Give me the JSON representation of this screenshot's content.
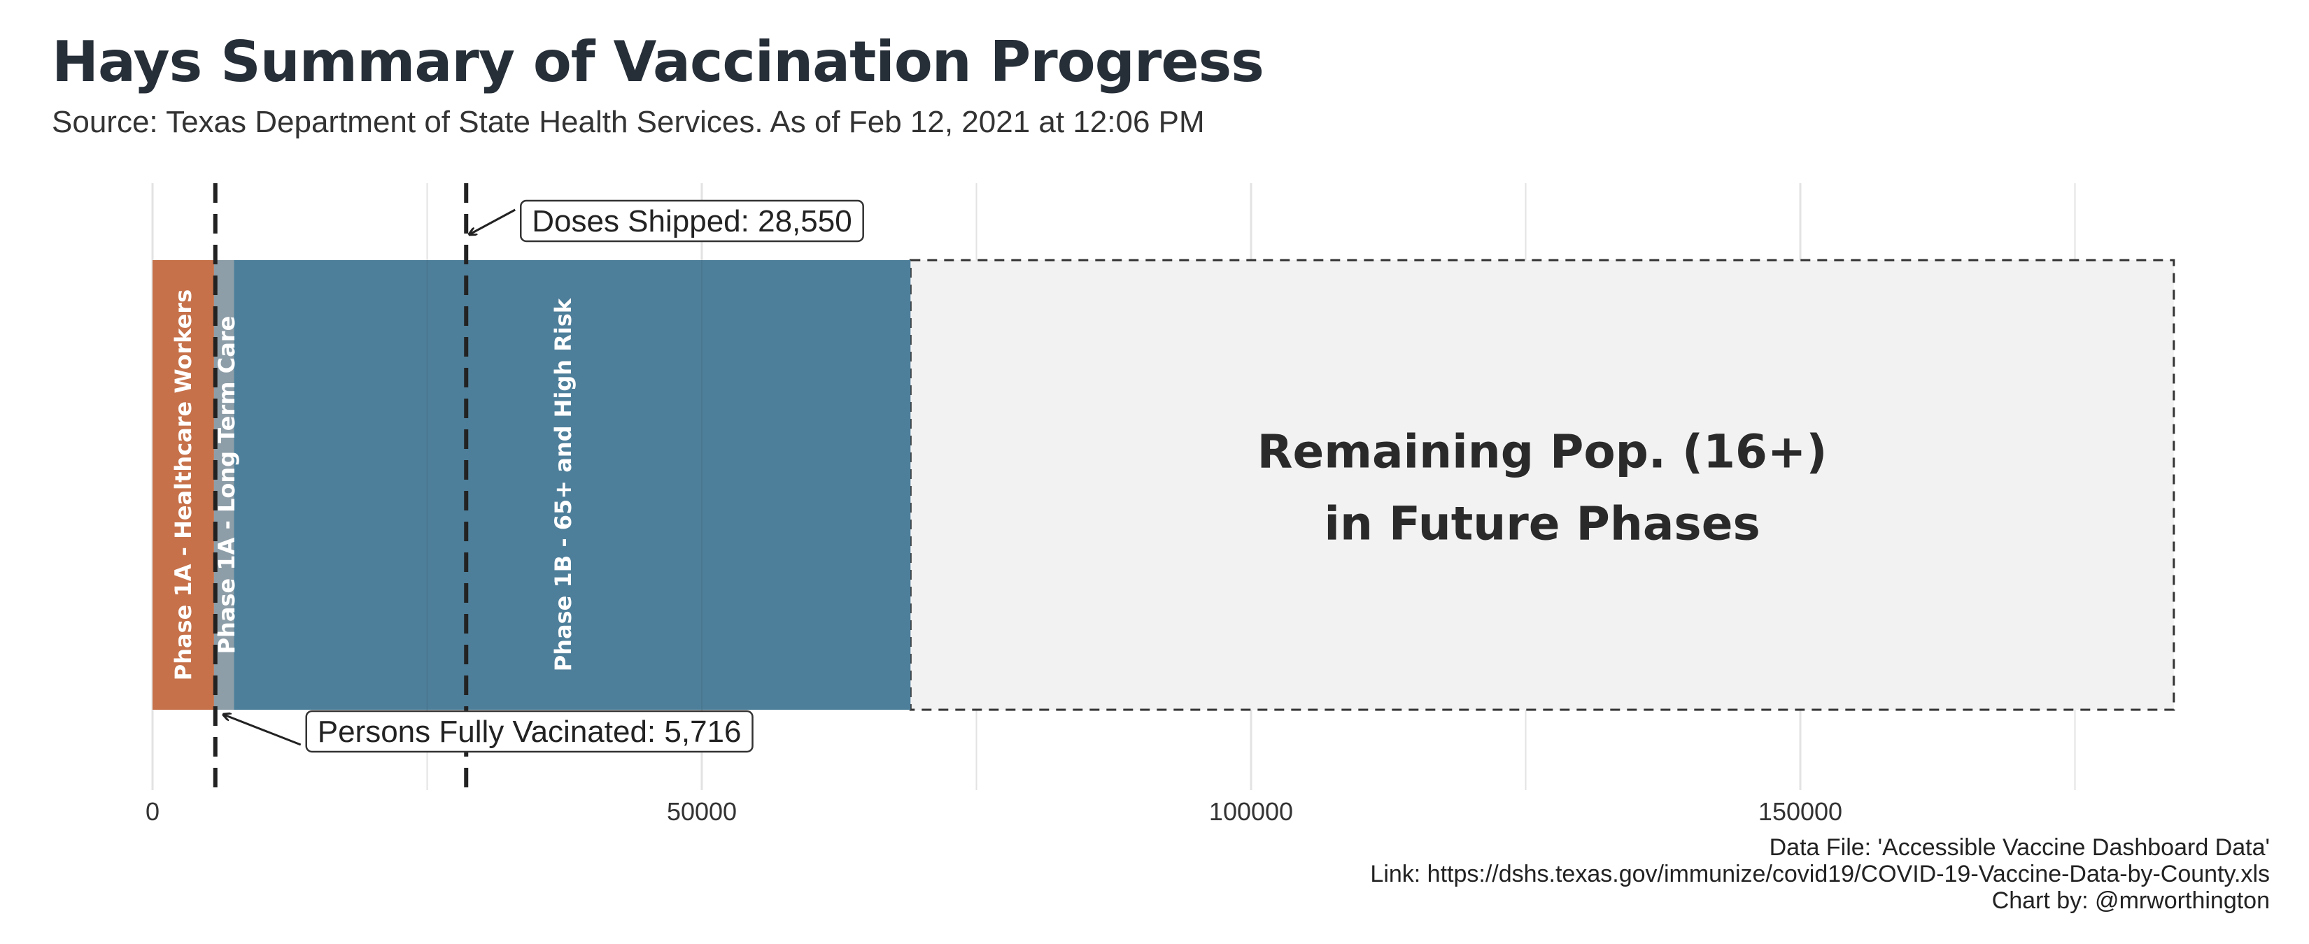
{
  "title": "Hays Summary of Vaccination Progress",
  "subtitle": "Source: Texas Department of State Health Services. As of Feb 12, 2021 at 12:06 PM",
  "caption": {
    "line1": "Data File: 'Accessible Vaccine Dashboard Data'",
    "line2": "Link: https://dshs.texas.gov/immunize/covid19/COVID-19-Vaccine-Data-by-County.xls",
    "line3": "Chart by: @mrworthington"
  },
  "colors": {
    "phase1a_healthcare": "#c6714a",
    "phase1a_ltc": "#8e9ea8",
    "phase1b": "#4e7f9a",
    "remaining": "#f2f2f2",
    "reference_line": "#222222",
    "grid": "#e3e3e3"
  },
  "chart_data": {
    "type": "bar",
    "orientation": "horizontal-stacked",
    "xlim": [
      0,
      185000
    ],
    "x_ticks": [
      0,
      50000,
      100000,
      150000
    ],
    "x_tick_labels": [
      "0",
      "50000",
      "100000",
      "150000"
    ],
    "segments": [
      {
        "name": "Phase 1A - Healthcare Workers",
        "start": 0,
        "end": 5600,
        "color_key": "phase1a_healthcare"
      },
      {
        "name": "Phase 1A - Long Term Care",
        "start": 5600,
        "end": 7400,
        "color_key": "phase1a_ltc"
      },
      {
        "name": "Phase 1B - 65+ and High Risk",
        "start": 7400,
        "end": 69000,
        "color_key": "phase1b"
      }
    ],
    "remaining": {
      "label_line1": "Remaining Pop. (16+)",
      "label_line2": "in Future Phases",
      "start": 69000,
      "end": 184000
    },
    "reference_lines": [
      {
        "name": "Doses Shipped",
        "value": 28550,
        "label": "Doses Shipped: 28,550",
        "position": "top"
      },
      {
        "name": "Persons Fully Vacinated",
        "value": 5716,
        "label": "Persons Fully Vacinated: 5,716",
        "position": "bottom"
      }
    ]
  }
}
